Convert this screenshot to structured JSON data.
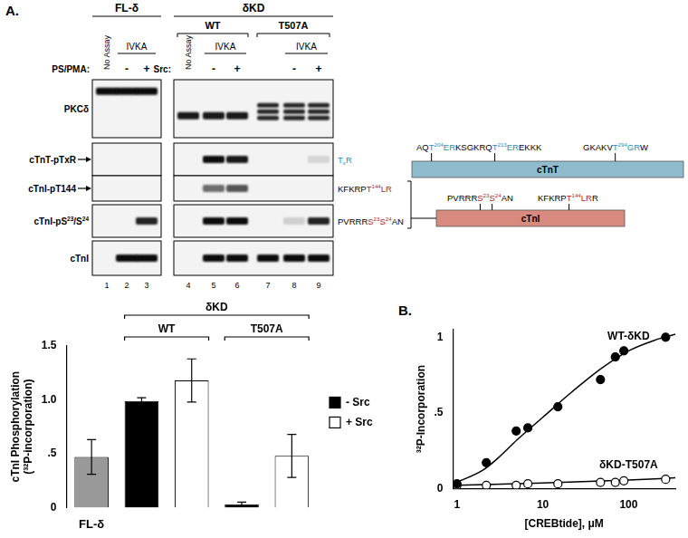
{
  "panel_labels": [
    "A.",
    "B."
  ],
  "panel_a": {
    "groups": [
      {
        "text": "FL-δ",
        "lanes": [
          1,
          3
        ]
      },
      {
        "text": "δKD",
        "lanes": [
          4,
          9
        ]
      }
    ],
    "subgroups": [
      {
        "text": "WT",
        "lanes": [
          4,
          6
        ]
      },
      {
        "text": "T507A",
        "lanes": [
          7,
          9
        ]
      }
    ],
    "no_assay": {
      "text": "No Assay",
      "lanes": [
        1,
        4
      ]
    },
    "ivka": {
      "text": "IVKA",
      "spans": [
        [
          2,
          3
        ],
        [
          5,
          6
        ],
        [
          8,
          9
        ]
      ]
    },
    "treatments": [
      {
        "text": "PS/PMA:",
        "marks": [
          {
            "lane": 2,
            "text": "-"
          },
          {
            "lane": 3,
            "text": "+"
          }
        ]
      },
      {
        "text": "Src:",
        "marks": [
          {
            "lane": 5,
            "text": "-"
          },
          {
            "lane": 6,
            "text": "+"
          },
          {
            "lane": 8,
            "text": "-"
          },
          {
            "lane": 9,
            "text": "+"
          }
        ]
      }
    ],
    "lane_numbers": [
      1,
      2,
      3,
      4,
      5,
      6,
      7,
      8,
      9
    ],
    "rows": [
      {
        "label": [
          {
            "t": "PKCδ"
          }
        ],
        "bands": [
          0.95,
          0.95,
          0.95,
          0.9,
          0.9,
          0.9,
          0.85,
          0.85,
          0.85
        ],
        "band_count": [
          1,
          1,
          1,
          1,
          1,
          1,
          3,
          3,
          3
        ],
        "migration": [
          0.2,
          0.2,
          0.2,
          0.62,
          0.62,
          0.62,
          0.55,
          0.55,
          0.55
        ]
      },
      {
        "label": [
          {
            "t": "cTnT-pTxR"
          }
        ],
        "arrow": true,
        "bands": [
          0,
          0,
          0,
          0,
          0.95,
          0.9,
          0,
          0,
          0.12
        ],
        "note": [
          {
            "t": "T",
            "sub": "x",
            "color": "#2a8cb5"
          },
          {
            "t": "R",
            "color": "#2a8cb5"
          }
        ]
      },
      {
        "label": [
          {
            "t": "cTnI-pT144"
          }
        ],
        "arrow": true,
        "bands": [
          0,
          0,
          0,
          0,
          0.55,
          0.65,
          0,
          0,
          0
        ],
        "note": [
          {
            "t": "KFKRP"
          },
          {
            "t": "T",
            "sup": "144",
            "color": "#a12b2b"
          },
          {
            "t": "LR",
            "color": "#a12b2b"
          }
        ]
      },
      {
        "label": [
          {
            "t": "cTnI-pS",
            "sup": "23"
          },
          {
            "t": "/S",
            "sup": "24"
          }
        ],
        "bands": [
          0,
          0,
          0.85,
          0,
          0.95,
          0.95,
          0,
          0.15,
          0.85
        ],
        "note": [
          {
            "t": "PVRRR"
          },
          {
            "t": "S",
            "sup": "23",
            "color": "#a12b2b"
          },
          {
            "t": "S",
            "sup": "24",
            "color": "#a12b2b"
          },
          {
            "t": "AN"
          }
        ]
      },
      {
        "label": [
          {
            "t": "cTnI"
          }
        ],
        "bands": [
          0,
          0.95,
          0.95,
          0,
          0.95,
          0.95,
          0.95,
          0.95,
          0.95
        ]
      }
    ],
    "schematic": [
      {
        "name": "cTnT",
        "color": "#8fbccd",
        "sequences": [
          [
            {
              "t": "AQ"
            },
            {
              "t": "T",
              "sup": "204",
              "color": "#2a8cb5"
            },
            {
              "t": "ER",
              "color": "#2a8cb5"
            },
            {
              "t": "KSGKRQ"
            },
            {
              "t": "T",
              "sup": "213",
              "color": "#2a8cb5"
            },
            {
              "t": "ER",
              "color": "#2a8cb5"
            },
            {
              "t": "EKKK"
            }
          ],
          [
            {
              "t": "GKAKV"
            },
            {
              "t": "T",
              "sup": "294",
              "color": "#2a8cb5"
            },
            {
              "t": "GR",
              "color": "#2a8cb5"
            },
            {
              "t": "W"
            }
          ]
        ]
      },
      {
        "name": "cTnI",
        "color": "#d98a7e",
        "sequences": [
          [
            {
              "t": "PVRRR"
            },
            {
              "t": "S",
              "sup": "23",
              "color": "#a12b2b"
            },
            {
              "t": "S",
              "sup": "24",
              "color": "#a12b2b"
            },
            {
              "t": "AN"
            }
          ],
          [
            {
              "t": "KFKRP"
            },
            {
              "t": "T",
              "sup": "144",
              "color": "#a12b2b"
            },
            {
              "t": "LR",
              "color": "#a12b2b"
            },
            {
              "t": "R"
            }
          ]
        ]
      }
    ]
  },
  "chart_data": [
    {
      "type": "bar",
      "categories": [
        "FL-δ",
        null,
        null,
        null,
        null
      ],
      "values": [
        0.47,
        0.99,
        1.18,
        0.03,
        0.48
      ],
      "errors": [
        0.16,
        0.03,
        0.2,
        0.02,
        0.2
      ],
      "colors": [
        "#999999",
        "#000000",
        "#ffffff",
        "#000000",
        "#ffffff"
      ],
      "y_label": [
        "cTnI Phosphorylation",
        "(³²P-incorporation)"
      ],
      "ylim": [
        0,
        1.5
      ],
      "yticks": [
        0,
        {
          "value": 0.5,
          "label": ".5"
        },
        {
          "value": 1,
          "label": "1.0"
        },
        1.5
      ],
      "grid": false,
      "legend": "right",
      "legend_items": [
        {
          "name": "- Src",
          "color": "#000000"
        },
        {
          "name": "+ Src",
          "color": "#ffffff"
        }
      ],
      "annotations": [
        {
          "text": "δKD",
          "from": 1,
          "to": 4
        },
        {
          "text": "WT",
          "from": 1,
          "to": 2
        },
        {
          "text": "T507A",
          "from": 3,
          "to": 4
        }
      ]
    },
    {
      "type": "scatter",
      "log": "x",
      "x_label": "[CREBtide], μM",
      "y_label": "³²P-Incorporation",
      "xlim": [
        0.9,
        350
      ],
      "xticks": [
        1,
        10,
        100
      ],
      "ylim": [
        0,
        1.05
      ],
      "yticks": [
        0,
        {
          "value": 0.5,
          "label": ".5"
        },
        1
      ],
      "grid": false,
      "series": [
        {
          "name": "WT-δKD",
          "color": "#000000",
          "marker": "circle",
          "x": [
            1,
            2.2,
            4.9,
            6.7,
            15,
            47,
            70,
            88,
            270
          ],
          "values": [
            0.03,
            0.17,
            0.38,
            0.4,
            0.54,
            0.72,
            0.87,
            0.91,
            1.0
          ],
          "fit": {
            "x": [
              1,
              2,
              3,
              5,
              10,
              20,
              50,
              100,
              200,
              350
            ],
            "values": [
              0.04,
              0.12,
              0.2,
              0.32,
              0.47,
              0.62,
              0.8,
              0.91,
              0.98,
              1.02
            ]
          }
        },
        {
          "name": "δKD-T507A",
          "color": "#000000",
          "marker": "circle_open",
          "x": [
            1,
            2.2,
            4.9,
            6.7,
            15,
            47,
            70,
            88,
            270
          ],
          "values": [
            0.02,
            0.02,
            0.02,
            0.03,
            0.03,
            0.04,
            0.04,
            0.05,
            0.06
          ],
          "fit": {
            "x": [
              1,
              10,
              100,
              350
            ],
            "values": [
              0.02,
              0.035,
              0.055,
              0.07
            ]
          }
        }
      ]
    }
  ]
}
